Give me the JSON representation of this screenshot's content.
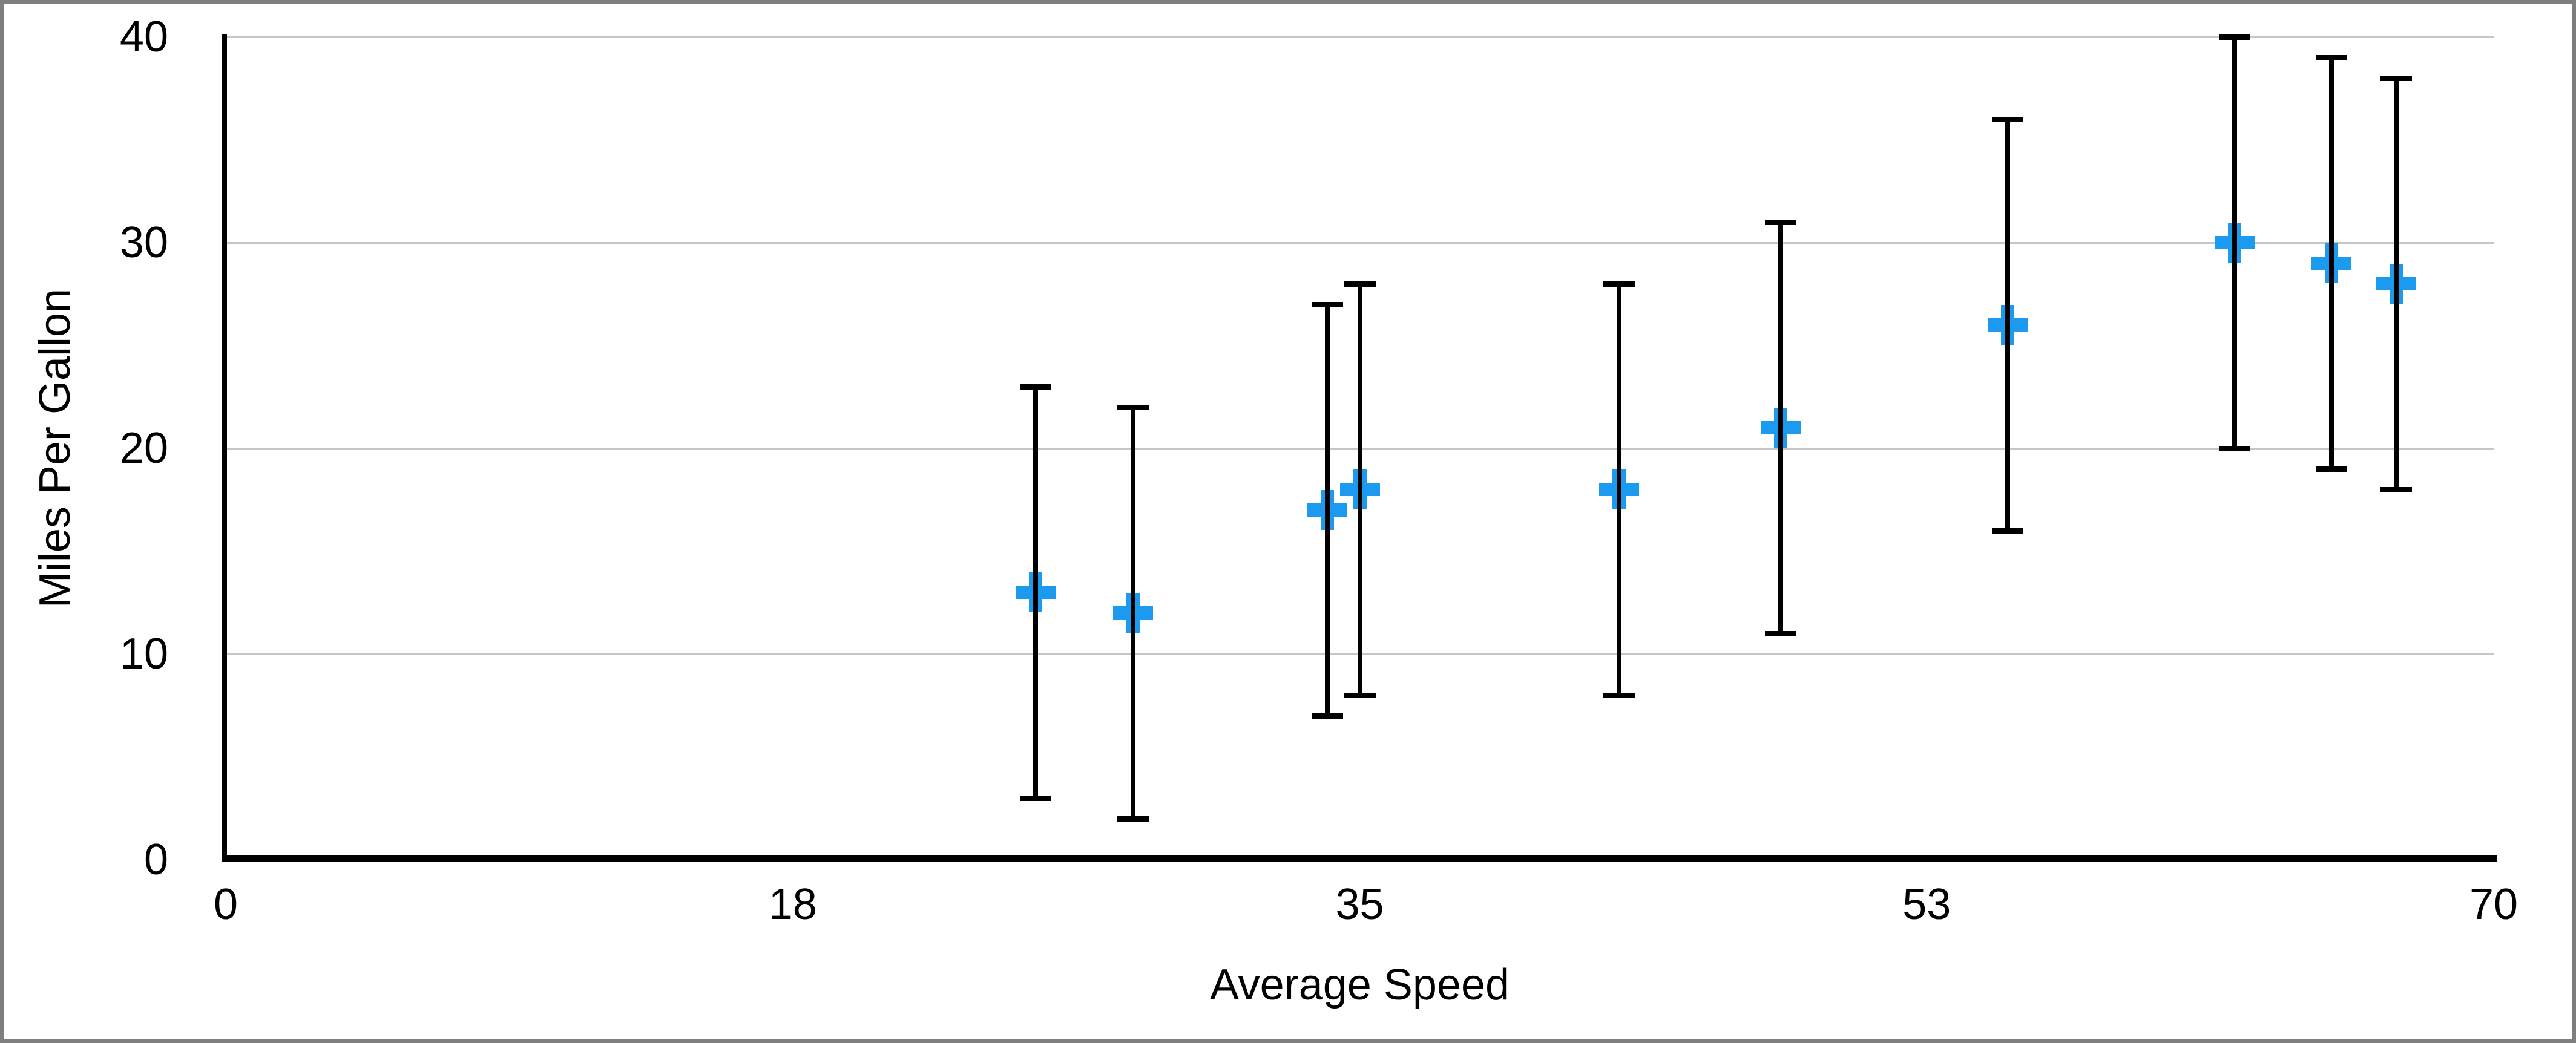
{
  "chart_data": {
    "type": "scatter",
    "title": "",
    "xlabel": "Average Speed",
    "ylabel": "Miles Per Gallon",
    "xlim": [
      0,
      70
    ],
    "ylim": [
      0,
      40
    ],
    "grid": "horizontal-only",
    "legend": "none",
    "marker_style": "plus",
    "x_ticks": [
      {
        "value": 0,
        "label": "0"
      },
      {
        "value": 17.5,
        "label": "18"
      },
      {
        "value": 35,
        "label": "35"
      },
      {
        "value": 52.5,
        "label": "53"
      },
      {
        "value": 70,
        "label": "70"
      }
    ],
    "y_ticks": [
      {
        "value": 0,
        "label": "0"
      },
      {
        "value": 10,
        "label": "10"
      },
      {
        "value": 20,
        "label": "20"
      },
      {
        "value": 30,
        "label": "30"
      },
      {
        "value": 40,
        "label": "40"
      }
    ],
    "points": [
      {
        "x": 25,
        "y": 13,
        "error_plus": 10,
        "error_minus": 10
      },
      {
        "x": 28,
        "y": 12,
        "error_plus": 10,
        "error_minus": 10
      },
      {
        "x": 34,
        "y": 17,
        "error_plus": 10,
        "error_minus": 10
      },
      {
        "x": 35,
        "y": 18,
        "error_plus": 10,
        "error_minus": 10
      },
      {
        "x": 43,
        "y": 18,
        "error_plus": 10,
        "error_minus": 10
      },
      {
        "x": 48,
        "y": 21,
        "error_plus": 10,
        "error_minus": 10
      },
      {
        "x": 55,
        "y": 26,
        "error_plus": 10,
        "error_minus": 10
      },
      {
        "x": 62,
        "y": 30,
        "error_plus": 10,
        "error_minus": 10
      },
      {
        "x": 65,
        "y": 29,
        "error_plus": 10,
        "error_minus": 10
      },
      {
        "x": 67,
        "y": 28,
        "error_plus": 10,
        "error_minus": 10
      }
    ],
    "colors": {
      "marker": "#1C9AF0",
      "error_bar": "#000000",
      "grid_line": "#C3C7C8",
      "axis_line": "#000000",
      "text": "#000000",
      "frame": "#7E7E7E",
      "background": "#FFFFFF"
    }
  }
}
